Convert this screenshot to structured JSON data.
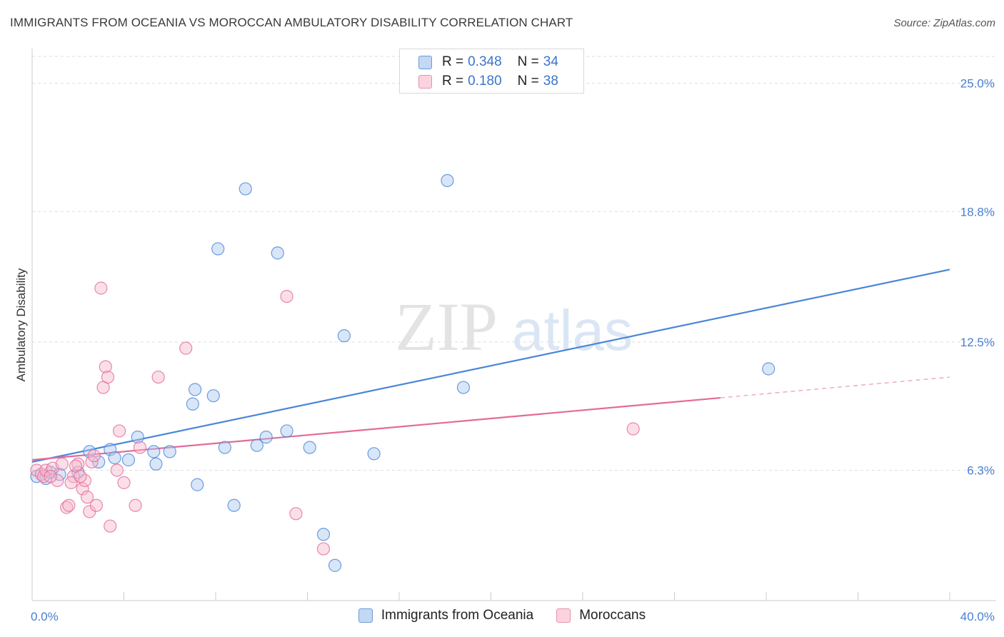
{
  "title": "IMMIGRANTS FROM OCEANIA VS MOROCCAN AMBULATORY DISABILITY CORRELATION CHART",
  "source": "Source: ZipAtlas.com",
  "watermark": {
    "zip": "ZIP",
    "atlas": "atlas"
  },
  "legend": {
    "rows": [
      {
        "r_label": "R = ",
        "r_value": "0.348",
        "n_label": "N = ",
        "n_value": "34",
        "color": "#a9c8f0"
      },
      {
        "r_label": "R = ",
        "r_value": "0.180",
        "n_label": "N = ",
        "n_value": "38",
        "color": "#f7b8cb"
      }
    ]
  },
  "chart_data": {
    "type": "scatter",
    "title": "IMMIGRANTS FROM OCEANIA VS MOROCCAN AMBULATORY DISABILITY CORRELATION CHART",
    "xlabel": "",
    "ylabel": "Ambulatory Disability",
    "xlim": [
      0,
      40
    ],
    "ylim": [
      0,
      26.3
    ],
    "x_tick_labels": [
      "0.0%",
      "40.0%"
    ],
    "y_ticks": [
      6.3,
      12.5,
      18.8,
      25.0
    ],
    "y_tick_labels": [
      "6.3%",
      "12.5%",
      "18.8%",
      "25.0%"
    ],
    "grid": "horizontal dashed",
    "legend_position": "top-center",
    "series": [
      {
        "name": "Immigrants from Oceania",
        "color": "#4a86d8",
        "fill": "#a9c8f0",
        "points": [
          [
            0.2,
            6.0
          ],
          [
            0.6,
            5.9
          ],
          [
            0.8,
            6.2
          ],
          [
            1.2,
            6.1
          ],
          [
            2.0,
            6.2
          ],
          [
            2.5,
            7.2
          ],
          [
            2.9,
            6.7
          ],
          [
            3.4,
            7.3
          ],
          [
            3.6,
            6.9
          ],
          [
            4.2,
            6.8
          ],
          [
            4.6,
            7.9
          ],
          [
            5.3,
            7.2
          ],
          [
            5.4,
            6.6
          ],
          [
            6.0,
            7.2
          ],
          [
            7.1,
            10.2
          ],
          [
            7.0,
            9.5
          ],
          [
            7.2,
            5.6
          ],
          [
            7.9,
            9.9
          ],
          [
            8.1,
            17.0
          ],
          [
            8.4,
            7.4
          ],
          [
            8.8,
            4.6
          ],
          [
            9.3,
            19.9
          ],
          [
            9.8,
            7.5
          ],
          [
            10.2,
            7.9
          ],
          [
            10.7,
            16.8
          ],
          [
            11.1,
            8.2
          ],
          [
            12.1,
            7.4
          ],
          [
            12.7,
            3.2
          ],
          [
            13.2,
            1.7
          ],
          [
            13.6,
            12.8
          ],
          [
            14.9,
            7.1
          ],
          [
            18.1,
            20.3
          ],
          [
            18.8,
            10.3
          ],
          [
            32.1,
            11.2
          ]
        ],
        "trend": {
          "x": [
            0,
            40
          ],
          "y": [
            6.7,
            16.0
          ]
        }
      },
      {
        "name": "Moroccans",
        "color": "#e36b98",
        "fill": "#f7b8cb",
        "points": [
          [
            0.2,
            6.3
          ],
          [
            0.4,
            6.1
          ],
          [
            0.5,
            6.0
          ],
          [
            0.6,
            6.3
          ],
          [
            0.9,
            6.4
          ],
          [
            1.1,
            5.8
          ],
          [
            1.3,
            6.6
          ],
          [
            1.5,
            4.5
          ],
          [
            1.6,
            4.6
          ],
          [
            1.8,
            6.0
          ],
          [
            2.0,
            6.6
          ],
          [
            2.2,
            5.4
          ],
          [
            2.3,
            5.8
          ],
          [
            2.4,
            5.0
          ],
          [
            2.5,
            4.3
          ],
          [
            2.6,
            6.7
          ],
          [
            2.7,
            7.0
          ],
          [
            2.8,
            4.6
          ],
          [
            3.0,
            15.1
          ],
          [
            3.1,
            10.3
          ],
          [
            3.2,
            11.3
          ],
          [
            3.3,
            10.8
          ],
          [
            3.4,
            3.6
          ],
          [
            3.7,
            6.3
          ],
          [
            3.8,
            8.2
          ],
          [
            4.0,
            5.7
          ],
          [
            4.5,
            4.6
          ],
          [
            4.7,
            7.4
          ],
          [
            5.5,
            10.8
          ],
          [
            6.7,
            12.2
          ],
          [
            11.1,
            14.7
          ],
          [
            11.5,
            4.2
          ],
          [
            12.7,
            2.5
          ],
          [
            26.2,
            8.3
          ],
          [
            1.7,
            5.7
          ],
          [
            0.8,
            6.0
          ],
          [
            1.9,
            6.5
          ],
          [
            2.1,
            6.0
          ]
        ],
        "trend": {
          "x": [
            0,
            30
          ],
          "y": [
            6.8,
            9.8
          ]
        },
        "trend_dashed": {
          "x": [
            30,
            40
          ],
          "y": [
            9.8,
            10.8
          ]
        }
      }
    ]
  },
  "bottom_legend": [
    {
      "label": "Immigrants from Oceania",
      "fill": "#c3d8f4",
      "border": "#6a9ad8"
    },
    {
      "label": "Moroccans",
      "fill": "#fbd3df",
      "border": "#e790ae"
    }
  ]
}
